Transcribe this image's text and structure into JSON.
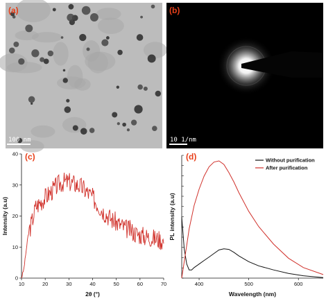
{
  "colors": {
    "panel_label": "#e8401a",
    "line_red": "#d0302a",
    "line_black": "#111111",
    "scale_text": "#ffffff"
  },
  "panels": {
    "a": {
      "label": "(a)",
      "scale_bar": "100 nm"
    },
    "b": {
      "label": "(b)",
      "scale_bar": "10 1/nm"
    }
  },
  "chart_data": [
    {
      "panel": "(c)",
      "type": "line",
      "xlabel": "2θ (°)",
      "ylabel": "Intensity (a.u)",
      "xlim": [
        10,
        70
      ],
      "ylim": [
        0,
        40
      ],
      "xticks": [
        10,
        20,
        30,
        40,
        50,
        60,
        70
      ],
      "yticks": [
        0,
        10,
        20,
        30,
        40
      ],
      "series": [
        {
          "color": "#d0302a",
          "x": [
            10,
            11,
            12,
            13,
            14,
            15,
            16,
            18,
            20,
            22,
            24,
            26,
            28,
            30,
            32,
            34,
            36,
            38,
            40,
            42,
            44,
            46,
            48,
            50,
            52,
            54,
            56,
            58,
            60,
            62,
            64,
            66,
            68,
            70
          ],
          "y": [
            0,
            3,
            9,
            15,
            17,
            20,
            23,
            24.5,
            26,
            27.5,
            29,
            30.5,
            31,
            31,
            30.5,
            30,
            29,
            27.5,
            26,
            24,
            22,
            20.5,
            19,
            18,
            17,
            16,
            15.5,
            14.5,
            14,
            13.5,
            13.2,
            12.8,
            12.5,
            12
          ]
        }
      ]
    },
    {
      "panel": "(d)",
      "type": "line",
      "xlabel": "Wavelength (nm)",
      "ylabel": "PL intensity (a.u)",
      "xlim": [
        365,
        650
      ],
      "xticks": [
        400,
        500,
        600
      ],
      "yticks": [],
      "legend": "top-right",
      "series": [
        {
          "name": "Without purification",
          "color": "#111111",
          "x": [
            365,
            370,
            375,
            380,
            385,
            390,
            400,
            410,
            420,
            430,
            440,
            450,
            460,
            470,
            480,
            500,
            520,
            550,
            580,
            610,
            650
          ],
          "y": [
            0.52,
            0.25,
            0.12,
            0.07,
            0.07,
            0.09,
            0.12,
            0.15,
            0.18,
            0.21,
            0.24,
            0.25,
            0.245,
            0.22,
            0.19,
            0.14,
            0.105,
            0.07,
            0.04,
            0.02,
            0.005
          ]
        },
        {
          "name": "After purification",
          "color": "#d0302a",
          "x": [
            365,
            370,
            375,
            380,
            390,
            400,
            410,
            420,
            430,
            440,
            450,
            460,
            470,
            480,
            500,
            520,
            550,
            580,
            610,
            650
          ],
          "y": [
            0.0,
            0.14,
            0.28,
            0.42,
            0.62,
            0.76,
            0.87,
            0.95,
            0.99,
            1.0,
            0.97,
            0.9,
            0.82,
            0.73,
            0.57,
            0.44,
            0.29,
            0.17,
            0.09,
            0.03
          ]
        }
      ]
    }
  ]
}
